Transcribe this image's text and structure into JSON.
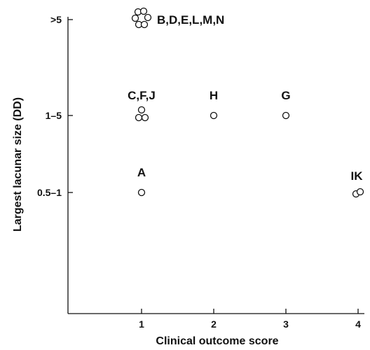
{
  "chart_data": {
    "type": "scatter",
    "title": "",
    "xlabel": "Clinical outcome score",
    "ylabel": "Largest lacunar size (DD)",
    "xlim": [
      0,
      4
    ],
    "x_ticks": [
      1,
      2,
      3,
      4
    ],
    "y_categories": [
      "0.5–1",
      "1–5",
      ">5"
    ],
    "grid": false,
    "legend": "none",
    "groups": [
      {
        "label": "B,D,E,L,M,N",
        "x": 1,
        "y": ">5",
        "count": 6
      },
      {
        "label": "C,F,J",
        "x": 1,
        "y": "1–5",
        "count": 3
      },
      {
        "label": "H",
        "x": 2,
        "y": "1–5",
        "count": 1
      },
      {
        "label": "G",
        "x": 3,
        "y": "1–5",
        "count": 1
      },
      {
        "label": "A",
        "x": 1,
        "y": "0.5–1",
        "count": 1
      },
      {
        "label": "IK",
        "x": 4,
        "y": "0.5–1",
        "count": 2
      }
    ]
  }
}
